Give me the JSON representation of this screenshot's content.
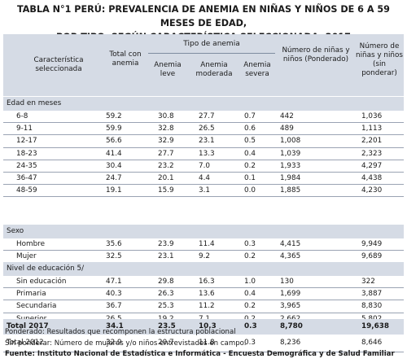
{
  "title_line1": "TABLA N°1 PERÚ: PREVALENCIA DE ANEMIA EN NIÑAS Y NIÑOS DE 6 A 59 MESES DE EDAD,",
  "title_line2": "POR TIPO, SEGÚN CARACTERÍSTICA SELECCIONADA, 2017",
  "header": {
    "caracteristica": "Característica seleccionada",
    "total_anemia": "Total con anemia",
    "tipo_anemia": "Tipo de anemia",
    "leve": "Anemia leve",
    "moderada": "Anemia moderada",
    "severa": "Anemia severa",
    "ponderado": "Número de niñas y niños (Ponderado)",
    "sin_ponderar": "Número de niñas y niños (sin ponderar)"
  },
  "sections": {
    "edad": {
      "label": "Edad en meses",
      "rows": [
        [
          "6-8",
          "59.2",
          "30.8",
          "27.7",
          "0.7",
          "442",
          "1,036"
        ],
        [
          "9-11",
          "59.9",
          "32.8",
          "26.5",
          "0.6",
          "489",
          "1,113"
        ],
        [
          "12-17",
          "56.6",
          "32.9",
          "23.1",
          "0.5",
          "1,008",
          "2,201"
        ],
        [
          "18-23",
          "41.4",
          "27.7",
          "13.3",
          "0.4",
          "1,039",
          "2,323"
        ],
        [
          "24-35",
          "30.4",
          "23.2",
          "7.0",
          "0.2",
          "1,933",
          "4,297"
        ],
        [
          "36-47",
          "24.7",
          "20.1",
          "4.4",
          "0.1",
          "1,984",
          "4,438"
        ],
        [
          "48-59",
          "19.1",
          "15.9",
          "3.1",
          "0.0",
          "1,885",
          "4,230"
        ]
      ]
    },
    "sexo": {
      "label": "Sexo",
      "rows": [
        [
          "Hombre",
          "35.6",
          "23.9",
          "11.4",
          "0.3",
          "4,415",
          "9,949"
        ],
        [
          "Mujer",
          "32.5",
          "23.1",
          "9.2",
          "0.2",
          "4,365",
          "9,689"
        ]
      ]
    },
    "educacion": {
      "label": "Nivel de educación 5/",
      "rows": [
        [
          "Sin educación",
          "47.1",
          "29.8",
          "16.3",
          "1.0",
          "130",
          "322"
        ],
        [
          "Primaria",
          "40.3",
          "26.3",
          "13.6",
          "0.4",
          "1,699",
          "3,887"
        ],
        [
          "Secundaria",
          "36.7",
          "25.3",
          "11.2",
          "0.2",
          "3,965",
          "8,830"
        ],
        [
          "Superior",
          "26.5",
          "19.2",
          "7.1",
          "0.2",
          "2,662",
          "5,802"
        ]
      ]
    }
  },
  "total_2017": [
    "Total 2017",
    "34.1",
    "23.5",
    "10.3",
    "0.3",
    "8,780",
    "19,638"
  ],
  "total_2012": [
    "Total 2012",
    "32.9",
    "20.7",
    "11.8",
    "0.3",
    "8,236",
    "8,646"
  ],
  "notes": {
    "ponderado": "Ponderado: Resultados que recomponen la estructura poblacional",
    "sin_ponderar": "Sin ponderar: Número de mujeres y/o niños entrevistados en campo.",
    "fuente": "Fuente: Instituto Nacional de Estadística e Informática - Encuesta Demográfica y de Salud Familiar"
  }
}
